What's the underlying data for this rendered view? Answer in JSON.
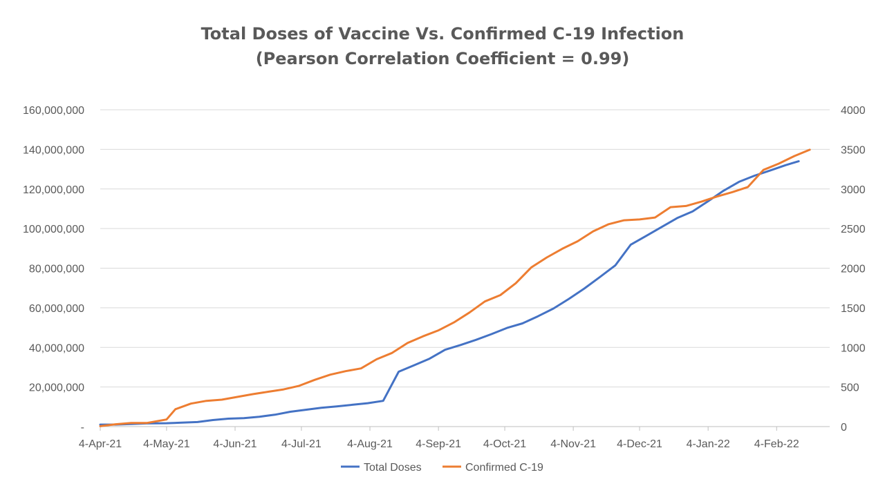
{
  "chart_data": {
    "type": "line",
    "title_line1": "Total Doses of Vaccine Vs. Confirmed C-19 Infection",
    "title_line2": "(Pearson Correlation Coefficient = 0.99)",
    "x_range": [
      "2021-04-04",
      "2022-02-28"
    ],
    "x_ticks": [
      {
        "date": "2021-04-04",
        "label": "4-Apr-21"
      },
      {
        "date": "2021-05-04",
        "label": "4-May-21"
      },
      {
        "date": "2021-06-04",
        "label": "4-Jun-21"
      },
      {
        "date": "2021-07-04",
        "label": "4-Jul-21"
      },
      {
        "date": "2021-08-04",
        "label": "4-Aug-21"
      },
      {
        "date": "2021-09-04",
        "label": "4-Sep-21"
      },
      {
        "date": "2021-10-04",
        "label": "4-Oct-21"
      },
      {
        "date": "2021-11-04",
        "label": "4-Nov-21"
      },
      {
        "date": "2021-12-04",
        "label": "4-Dec-21"
      },
      {
        "date": "2022-01-04",
        "label": "4-Jan-22"
      },
      {
        "date": "2022-02-04",
        "label": "4-Feb-22"
      }
    ],
    "y_left": {
      "min": 0,
      "max": 160000000,
      "ticks": [
        {
          "value": 0,
          "label": "-"
        },
        {
          "value": 20000000,
          "label": "20,000,000"
        },
        {
          "value": 40000000,
          "label": "40,000,000"
        },
        {
          "value": 60000000,
          "label": "60,000,000"
        },
        {
          "value": 80000000,
          "label": "80,000,000"
        },
        {
          "value": 100000000,
          "label": "100,000,000"
        },
        {
          "value": 120000000,
          "label": "120,000,000"
        },
        {
          "value": 140000000,
          "label": "140,000,000"
        },
        {
          "value": 160000000,
          "label": "160,000,000"
        }
      ]
    },
    "y_right": {
      "min": 0,
      "max": 4000,
      "ticks": [
        {
          "value": 0,
          "label": "0"
        },
        {
          "value": 500,
          "label": "500"
        },
        {
          "value": 1000,
          "label": "1000"
        },
        {
          "value": 1500,
          "label": "1500"
        },
        {
          "value": 2000,
          "label": "2000"
        },
        {
          "value": 2500,
          "label": "2500"
        },
        {
          "value": 3000,
          "label": "3000"
        },
        {
          "value": 3500,
          "label": "3500"
        },
        {
          "value": 4000,
          "label": "4000"
        }
      ]
    },
    "grid": true,
    "legend_position": "bottom",
    "series": [
      {
        "name": "Total Doses",
        "axis": "left",
        "color": "#4472C4",
        "points": [
          [
            "2021-04-04",
            1000000
          ],
          [
            "2021-04-11",
            1000000
          ],
          [
            "2021-04-18",
            1300000
          ],
          [
            "2021-04-25",
            1600000
          ],
          [
            "2021-05-04",
            1700000
          ],
          [
            "2021-05-11",
            2000000
          ],
          [
            "2021-05-18",
            2300000
          ],
          [
            "2021-05-25",
            3300000
          ],
          [
            "2021-06-01",
            4000000
          ],
          [
            "2021-06-08",
            4300000
          ],
          [
            "2021-06-15",
            5000000
          ],
          [
            "2021-06-22",
            6000000
          ],
          [
            "2021-06-29",
            7500000
          ],
          [
            "2021-07-06",
            8500000
          ],
          [
            "2021-07-13",
            9500000
          ],
          [
            "2021-07-20",
            10200000
          ],
          [
            "2021-07-27",
            11000000
          ],
          [
            "2021-08-03",
            11800000
          ],
          [
            "2021-08-10",
            13000000
          ],
          [
            "2021-08-17",
            27700000
          ],
          [
            "2021-08-24",
            31000000
          ],
          [
            "2021-08-31",
            34300000
          ],
          [
            "2021-09-07",
            38800000
          ],
          [
            "2021-09-14",
            41200000
          ],
          [
            "2021-09-21",
            43800000
          ],
          [
            "2021-09-28",
            46700000
          ],
          [
            "2021-10-05",
            49800000
          ],
          [
            "2021-10-12",
            52100000
          ],
          [
            "2021-10-19",
            55700000
          ],
          [
            "2021-10-26",
            59600000
          ],
          [
            "2021-11-02",
            64500000
          ],
          [
            "2021-11-09",
            69700000
          ],
          [
            "2021-11-16",
            75500000
          ],
          [
            "2021-11-23",
            81400000
          ],
          [
            "2021-11-30",
            91900000
          ],
          [
            "2021-12-07",
            96300000
          ],
          [
            "2021-12-14",
            100800000
          ],
          [
            "2021-12-21",
            105300000
          ],
          [
            "2021-12-28",
            108700000
          ],
          [
            "2022-01-04",
            113800000
          ],
          [
            "2022-01-11",
            119100000
          ],
          [
            "2022-01-18",
            123600000
          ],
          [
            "2022-01-25",
            126700000
          ],
          [
            "2022-02-01",
            129300000
          ],
          [
            "2022-02-08",
            132000000
          ],
          [
            "2022-02-14",
            134000000
          ]
        ]
      },
      {
        "name": "Confirmed C-19",
        "axis": "right",
        "color": "#ED7D31",
        "points": [
          [
            "2021-04-04",
            5
          ],
          [
            "2021-04-11",
            30
          ],
          [
            "2021-04-18",
            45
          ],
          [
            "2021-04-25",
            45
          ],
          [
            "2021-05-04",
            90
          ],
          [
            "2021-05-08",
            220
          ],
          [
            "2021-05-15",
            290
          ],
          [
            "2021-05-22",
            325
          ],
          [
            "2021-05-29",
            340
          ],
          [
            "2021-06-05",
            375
          ],
          [
            "2021-06-12",
            410
          ],
          [
            "2021-06-19",
            440
          ],
          [
            "2021-06-26",
            470
          ],
          [
            "2021-07-03",
            515
          ],
          [
            "2021-07-10",
            590
          ],
          [
            "2021-07-17",
            655
          ],
          [
            "2021-07-24",
            700
          ],
          [
            "2021-07-31",
            735
          ],
          [
            "2021-08-07",
            850
          ],
          [
            "2021-08-14",
            930
          ],
          [
            "2021-08-21",
            1055
          ],
          [
            "2021-08-28",
            1140
          ],
          [
            "2021-09-04",
            1215
          ],
          [
            "2021-09-11",
            1315
          ],
          [
            "2021-09-18",
            1440
          ],
          [
            "2021-09-25",
            1580
          ],
          [
            "2021-10-02",
            1660
          ],
          [
            "2021-10-09",
            1810
          ],
          [
            "2021-10-16",
            2010
          ],
          [
            "2021-10-23",
            2135
          ],
          [
            "2021-10-30",
            2245
          ],
          [
            "2021-11-06",
            2340
          ],
          [
            "2021-11-13",
            2465
          ],
          [
            "2021-11-20",
            2555
          ],
          [
            "2021-11-27",
            2605
          ],
          [
            "2021-12-04",
            2615
          ],
          [
            "2021-12-11",
            2640
          ],
          [
            "2021-12-18",
            2770
          ],
          [
            "2021-12-25",
            2785
          ],
          [
            "2022-01-01",
            2840
          ],
          [
            "2022-01-08",
            2905
          ],
          [
            "2022-01-15",
            2960
          ],
          [
            "2022-01-22",
            3025
          ],
          [
            "2022-01-29",
            3240
          ],
          [
            "2022-02-05",
            3320
          ],
          [
            "2022-02-12",
            3415
          ],
          [
            "2022-02-19",
            3495
          ]
        ]
      }
    ]
  }
}
